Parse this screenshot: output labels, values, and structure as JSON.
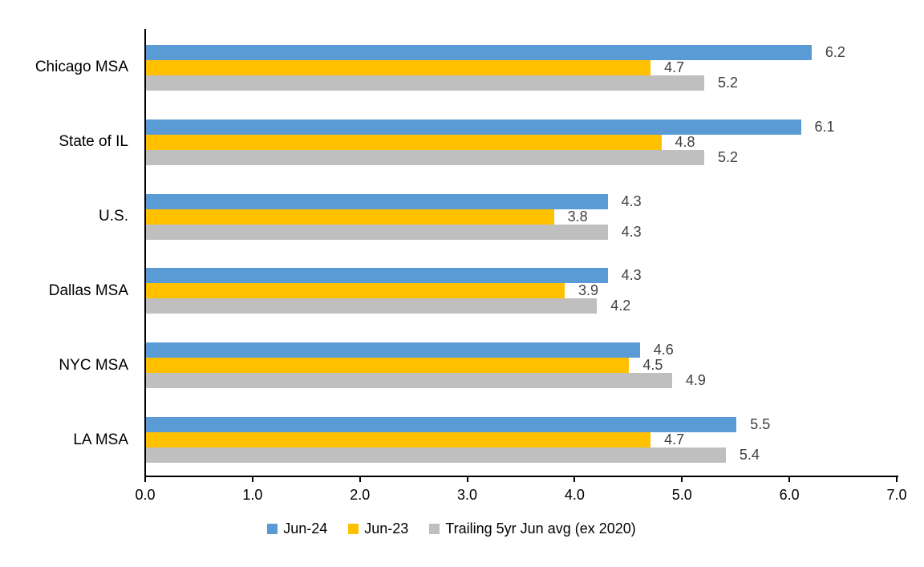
{
  "chart_data": {
    "type": "bar",
    "orientation": "horizontal",
    "title": "",
    "xlabel": "",
    "ylabel": "",
    "categories": [
      "Chicago MSA",
      "State of IL",
      "U.S.",
      "Dallas MSA",
      "NYC MSA",
      "LA MSA"
    ],
    "series": [
      {
        "name": "Jun-24",
        "color": "#5B9BD5",
        "values": [
          6.2,
          6.1,
          4.3,
          4.3,
          4.6,
          5.5
        ]
      },
      {
        "name": "Jun-23",
        "color": "#FFC000",
        "values": [
          4.7,
          4.8,
          3.8,
          3.9,
          4.5,
          4.7
        ]
      },
      {
        "name": "Trailing 5yr Jun avg (ex 2020)",
        "color": "#BFBFBF",
        "values": [
          5.2,
          5.2,
          4.3,
          4.2,
          4.9,
          5.4
        ]
      }
    ],
    "xlim": [
      0,
      7
    ],
    "x_ticks": [
      "0.0",
      "1.0",
      "2.0",
      "3.0",
      "4.0",
      "5.0",
      "6.0",
      "7.0"
    ],
    "grid": false,
    "data_labels": true,
    "data_label_decimals": 1,
    "data_label_color": "#404040",
    "axis_color": "#000000",
    "legend_position": "bottom"
  }
}
